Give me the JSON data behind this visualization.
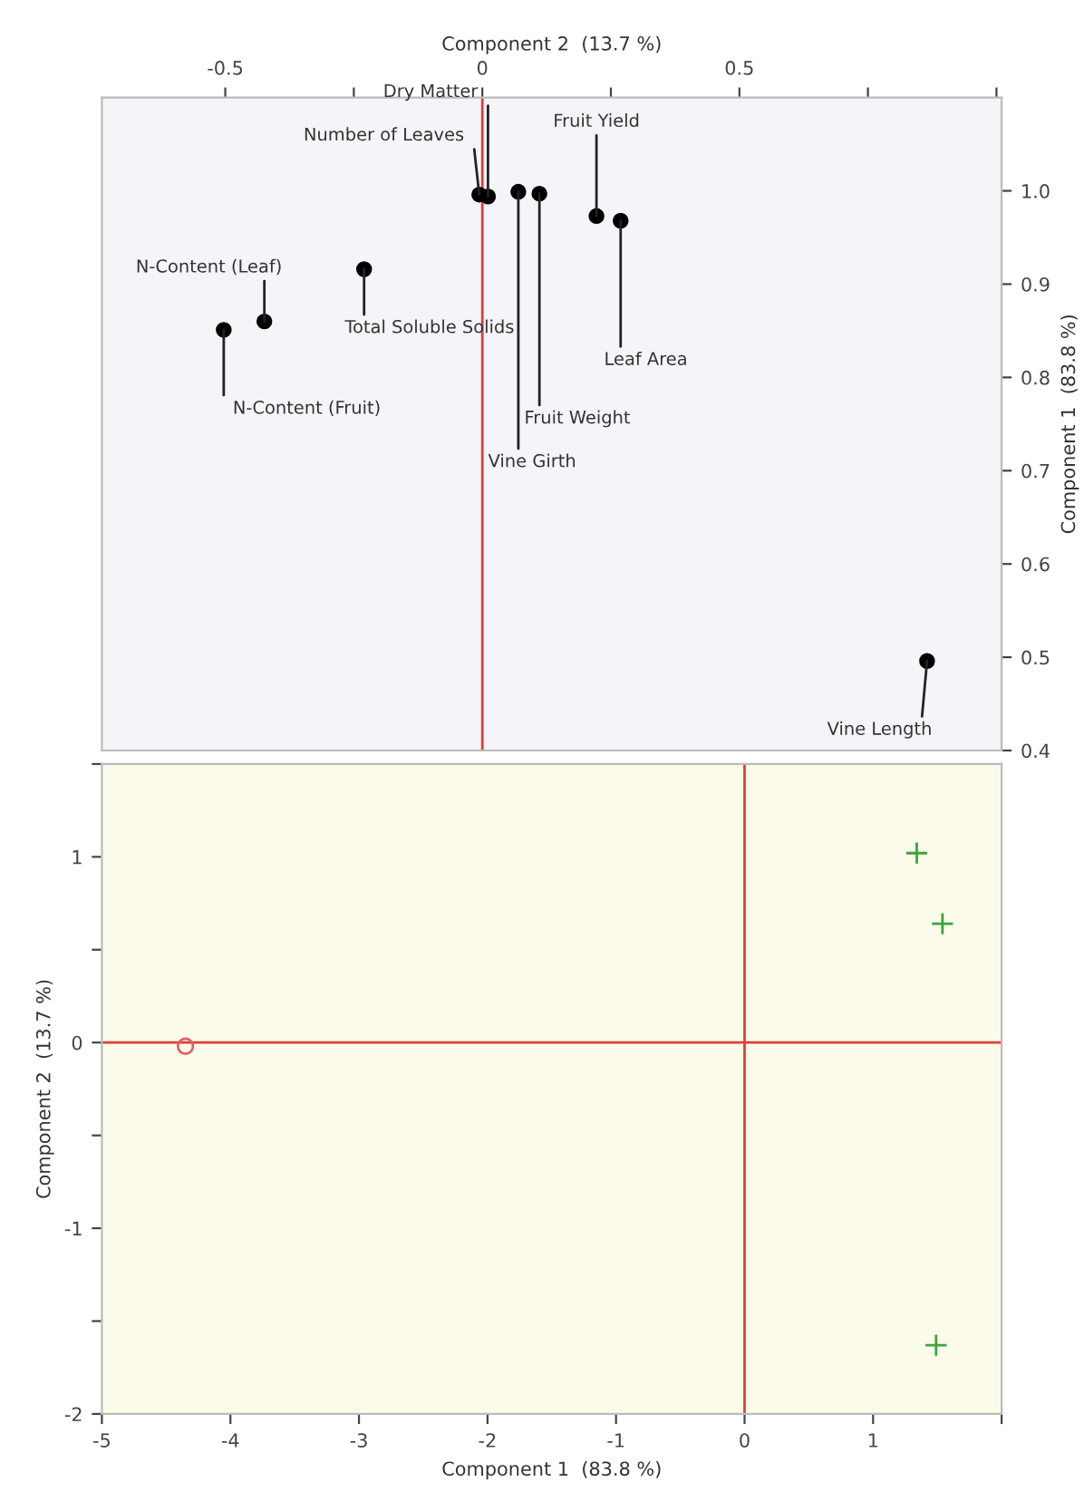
{
  "chart_data": [
    {
      "type": "scatter",
      "xlabel": "Component 2  (13.7 %)",
      "ylabel": "Component 1  (83.8 %)",
      "series": [
        {
          "color": "#000000",
          "marker": "circle",
          "x": [
            -0.006,
            0.011,
            0.07,
            0.111,
            0.222,
            0.269,
            -0.23,
            -0.424,
            -0.503,
            0.865
          ],
          "values": [
            0.996,
            0.994,
            0.999,
            0.997,
            0.973,
            0.968,
            0.916,
            0.86,
            0.851,
            0.496
          ]
        }
      ],
      "annotations": [
        {
          "text": "Number of Leaves",
          "x": -0.006,
          "y": 0.996
        },
        {
          "text": "Dry Matter",
          "x": 0.011,
          "y": 0.994
        },
        {
          "text": "Vine Girth",
          "x": 0.07,
          "y": 0.999
        },
        {
          "text": "Fruit Weight",
          "x": 0.111,
          "y": 0.997
        },
        {
          "text": "Fruit Yield",
          "x": 0.222,
          "y": 0.973
        },
        {
          "text": "Leaf Area",
          "x": 0.269,
          "y": 0.968
        },
        {
          "text": "Total Soluble Solids",
          "x": -0.23,
          "y": 0.916
        },
        {
          "text": "N-Content (Leaf)",
          "x": -0.424,
          "y": 0.86
        },
        {
          "text": "N-Content (Fruit)",
          "x": -0.503,
          "y": 0.851
        },
        {
          "text": "Vine Length",
          "x": 0.865,
          "y": 0.496
        }
      ],
      "xlim": [
        -0.74,
        1.01
      ],
      "xticks": [
        -0.5,
        {
          "value": -0.25,
          "label": null
        },
        0,
        {
          "value": 0.25,
          "label": null
        },
        0.5,
        {
          "value": 0.75,
          "label": null
        },
        {
          "value": 1.0,
          "label": null
        }
      ],
      "ylim": [
        0.4,
        1.1
      ],
      "yticks": [
        0.4,
        0.5,
        0.6,
        0.7,
        0.8,
        0.9,
        {
          "value": 1,
          "label": "1.0"
        }
      ],
      "ref_lines": [
        {
          "axis": "x",
          "value": 0,
          "color": "#e03c3c"
        }
      ],
      "grid": false,
      "legend": false
    },
    {
      "type": "scatter",
      "xlabel": "Component 1  (83.8 %)",
      "ylabel": "Component 2  (13.7 %)",
      "series": [
        {
          "color": "#e06060",
          "marker": "circle",
          "x": [
            -4.35
          ],
          "values": [
            -0.02
          ]
        },
        {
          "color": "#3aa53a",
          "marker": "cross",
          "x": [
            1.34,
            1.54,
            1.49
          ],
          "values": [
            1.02,
            0.64,
            -1.63
          ]
        }
      ],
      "xlim": [
        -5,
        2
      ],
      "xticks": [
        -5,
        -4,
        -3,
        -2,
        -1,
        0,
        1,
        {
          "value": 2,
          "label": null
        }
      ],
      "ylim": [
        -2,
        1.5
      ],
      "yticks": [
        -2,
        {
          "value": -1.5,
          "label": null
        },
        -1,
        {
          "value": -0.5,
          "label": null
        },
        0,
        {
          "value": 0.5,
          "label": null
        },
        1,
        {
          "value": 1.5,
          "label": null
        }
      ],
      "ref_lines": [
        {
          "axis": "x",
          "value": 0,
          "color": "#e03c3c"
        },
        {
          "axis": "y",
          "value": 0,
          "color": "#e03c3c"
        }
      ],
      "grid": false,
      "legend": false
    }
  ]
}
